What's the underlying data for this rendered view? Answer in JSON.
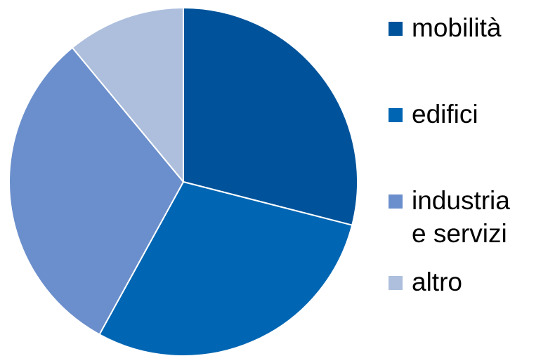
{
  "chart_data": {
    "type": "pie",
    "title": "",
    "start_angle_deg": 0,
    "direction": "clockwise",
    "legend_position": "right",
    "slices": [
      {
        "label": "mobilità",
        "value": 29,
        "color": "#00539b"
      },
      {
        "label": "edifici",
        "value": 29,
        "color": "#0066b3"
      },
      {
        "label": "industria e servizi",
        "value": 31,
        "color": "#6b8fcc"
      },
      {
        "label": "altro",
        "value": 11,
        "color": "#adbfdd"
      }
    ]
  },
  "legend": {
    "items": [
      {
        "lines": [
          "mobilità"
        ],
        "color": "#00539b"
      },
      {
        "lines": [
          "edifici"
        ],
        "color": "#0066b3"
      },
      {
        "lines": [
          "industria",
          "e servizi"
        ],
        "color": "#6b8fcc"
      },
      {
        "lines": [
          "altro"
        ],
        "color": "#adbfdd"
      }
    ]
  }
}
